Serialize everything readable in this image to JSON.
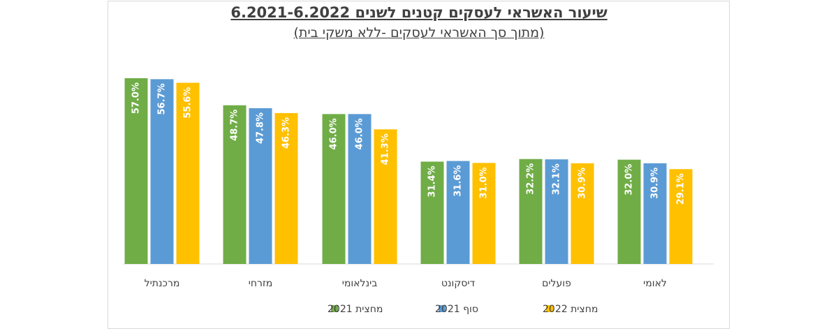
{
  "chart_data": {
    "type": "bar",
    "title": "שיעור האשראי לעסקים קטנים לשנים 6.2021-6.2022",
    "subtitle": "(מתוך סך האשראי לעסקים -ללא משקי בית)",
    "categories": [
      "מרכנתיל",
      "מזרחי",
      "בינלאומי",
      "דיסקונט",
      "פועלים",
      "לאומי"
    ],
    "series": [
      {
        "name": "מחצית 2021",
        "color": "#70ad47",
        "values": [
          57.0,
          48.7,
          46.0,
          31.4,
          32.2,
          32.0
        ]
      },
      {
        "name": "סוף 2021",
        "color": "#5b9bd5",
        "values": [
          56.7,
          47.8,
          46.0,
          31.6,
          32.1,
          30.9
        ]
      },
      {
        "name": "מחצית 2022",
        "color": "#ffc000",
        "values": [
          55.6,
          46.3,
          41.3,
          31.0,
          30.9,
          29.1
        ]
      }
    ],
    "value_suffix": "%",
    "ylim": [
      0,
      60
    ],
    "grid": false,
    "legend_position": "bottom"
  }
}
